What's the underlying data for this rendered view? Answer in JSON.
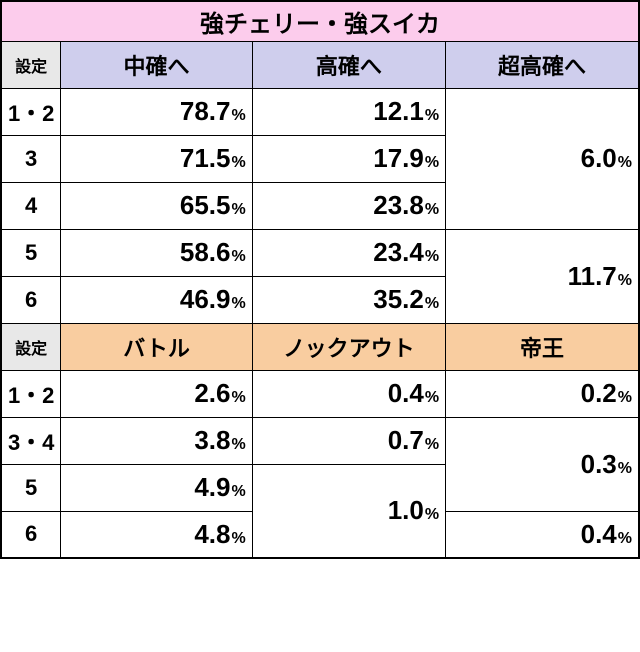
{
  "title": "強チェリー・強スイカ",
  "section1": {
    "settei_label": "設定",
    "cols": [
      "中確へ",
      "高確へ",
      "超高確へ"
    ]
  },
  "s1r": [
    {
      "label": "1・2",
      "c1": "78.7",
      "c2": "12.1"
    },
    {
      "label": "3",
      "c1": "71.5",
      "c2": "17.9"
    },
    {
      "label": "4",
      "c1": "65.5",
      "c2": "23.8"
    },
    {
      "label": "5",
      "c1": "58.6",
      "c2": "23.4"
    },
    {
      "label": "6",
      "c1": "46.9",
      "c2": "35.2"
    }
  ],
  "s1merge": {
    "m1": "6.0",
    "m2": "11.7"
  },
  "section2": {
    "settei_label": "設定",
    "cols": [
      "バトル",
      "ノックアウト",
      "帝王"
    ]
  },
  "s2r": [
    {
      "label": "1・2",
      "c1": "2.6",
      "c2": "0.4",
      "c3": "0.2"
    },
    {
      "label": "3・4",
      "c1": "3.8",
      "c2": "0.7"
    },
    {
      "label": "5",
      "c1": "4.9"
    },
    {
      "label": "6",
      "c1": "4.8",
      "c3": "0.4"
    }
  ],
  "s2merge": {
    "c2m": "1.0",
    "c3m": "0.3"
  },
  "pct": "%"
}
